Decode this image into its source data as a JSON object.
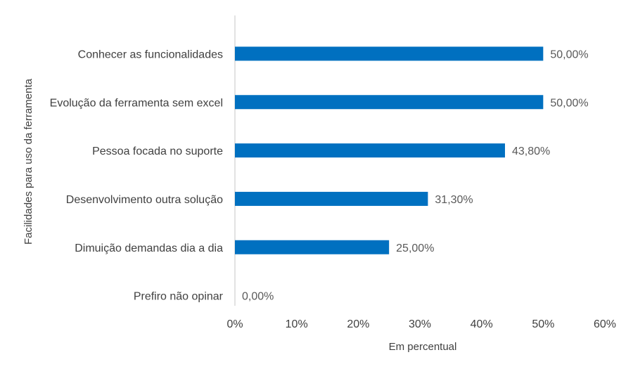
{
  "chart_data": {
    "type": "bar",
    "orientation": "horizontal",
    "categories": [
      "Conhecer as funcionalidades",
      "Evolução da ferramenta sem excel",
      "Pessoa focada no suporte",
      "Desenvolvimento outra solução",
      "Dimuição demandas dia a dia",
      "Prefiro não opinar"
    ],
    "values": [
      50.0,
      50.0,
      43.8,
      31.3,
      25.0,
      0.0
    ],
    "value_labels": [
      "50,00%",
      "50,00%",
      "43,80%",
      "31,30%",
      "25,00%",
      "0,00%"
    ],
    "xlabel": "Em percentual",
    "ylabel": "Facilidades para uso da ferramenta",
    "xlim": [
      0,
      60
    ],
    "xticks": [
      0,
      10,
      20,
      30,
      40,
      50,
      60
    ],
    "xtick_labels": [
      "0%",
      "10%",
      "20%",
      "30%",
      "40%",
      "50%",
      "60%"
    ],
    "grid": false,
    "legend": "none",
    "bar_color": "#0070C0",
    "axis_color": "#D9D9D9"
  }
}
